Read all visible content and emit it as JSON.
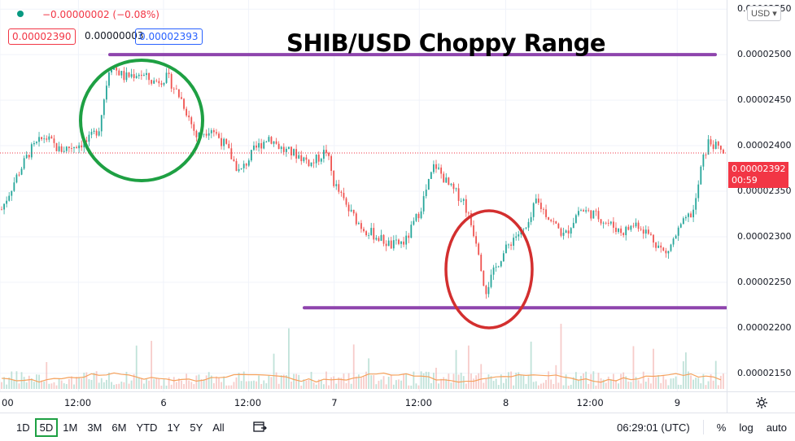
{
  "header": {
    "change_text": "−0.00000002 (−0.08%)",
    "bid": "0.00002390",
    "spread": "0.00000003",
    "ask": "0.00002393",
    "currency": "USD"
  },
  "title": "SHIB/USD Choppy Range",
  "last_price": {
    "value": "0.00002392",
    "countdown": "00:59"
  },
  "toolbar": {
    "ranges": [
      "1D",
      "5D",
      "1M",
      "3M",
      "6M",
      "YTD",
      "1Y",
      "5Y",
      "All"
    ],
    "active_range": "5D",
    "clock": "06:29:01 (UTC)",
    "percent": "%",
    "log": "log",
    "auto": "auto"
  },
  "colors": {
    "up": "#26a69a",
    "down": "#ef5350",
    "range_line": "#8e44ad",
    "circle_high": "#1ea043",
    "circle_low": "#d32f2f"
  },
  "chart_data": {
    "type": "candlestick",
    "title": "SHIB/USD Choppy Range",
    "symbol": "SHIB/USD",
    "ylim": [
      2.14e-05,
      2.56e-05
    ],
    "y_ticks": [
      "0.00002550",
      "0.00002500",
      "0.00002450",
      "0.00002400",
      "0.00002350",
      "0.00002300",
      "0.00002250",
      "0.00002200",
      "0.00002150"
    ],
    "x_ticks": [
      "00",
      "12:00",
      "6",
      "12:00",
      "7",
      "12:00",
      "8",
      "12:00",
      "9"
    ],
    "close_path": [
      [
        0.0,
        2.33e-05
      ],
      [
        0.02,
        2.365e-05
      ],
      [
        0.04,
        2.395e-05
      ],
      [
        0.06,
        2.41e-05
      ],
      [
        0.08,
        2.395e-05
      ],
      [
        0.1,
        2.4e-05
      ],
      [
        0.12,
        2.405e-05
      ],
      [
        0.135,
        2.42e-05
      ],
      [
        0.15,
        2.49e-05
      ],
      [
        0.17,
        2.475e-05
      ],
      [
        0.19,
        2.48e-05
      ],
      [
        0.21,
        2.47e-05
      ],
      [
        0.23,
        2.475e-05
      ],
      [
        0.25,
        2.45e-05
      ],
      [
        0.27,
        2.41e-05
      ],
      [
        0.29,
        2.42e-05
      ],
      [
        0.31,
        2.4e-05
      ],
      [
        0.33,
        2.37e-05
      ],
      [
        0.35,
        2.395e-05
      ],
      [
        0.37,
        2.41e-05
      ],
      [
        0.39,
        2.395e-05
      ],
      [
        0.41,
        2.39e-05
      ],
      [
        0.43,
        2.38e-05
      ],
      [
        0.45,
        2.395e-05
      ],
      [
        0.46,
        2.36e-05
      ],
      [
        0.48,
        2.33e-05
      ],
      [
        0.5,
        2.31e-05
      ],
      [
        0.52,
        2.3e-05
      ],
      [
        0.54,
        2.29e-05
      ],
      [
        0.56,
        2.295e-05
      ],
      [
        0.58,
        2.33e-05
      ],
      [
        0.6,
        2.38e-05
      ],
      [
        0.62,
        2.355e-05
      ],
      [
        0.64,
        2.34e-05
      ],
      [
        0.66,
        2.29e-05
      ],
      [
        0.67,
        2.24e-05
      ],
      [
        0.69,
        2.275e-05
      ],
      [
        0.71,
        2.3e-05
      ],
      [
        0.73,
        2.31e-05
      ],
      [
        0.74,
        2.34e-05
      ],
      [
        0.76,
        2.32e-05
      ],
      [
        0.78,
        2.3e-05
      ],
      [
        0.8,
        2.33e-05
      ],
      [
        0.82,
        2.325e-05
      ],
      [
        0.84,
        2.315e-05
      ],
      [
        0.86,
        2.305e-05
      ],
      [
        0.88,
        2.315e-05
      ],
      [
        0.9,
        2.3e-05
      ],
      [
        0.92,
        2.28e-05
      ],
      [
        0.94,
        2.31e-05
      ],
      [
        0.96,
        2.33e-05
      ],
      [
        0.97,
        2.38e-05
      ],
      [
        0.98,
        2.405e-05
      ],
      [
        1.0,
        2.392e-05
      ]
    ],
    "annotations": {
      "resistance": 2.5e-05,
      "support": 2.222e-05,
      "last_close_line": 2.392e-05
    }
  }
}
